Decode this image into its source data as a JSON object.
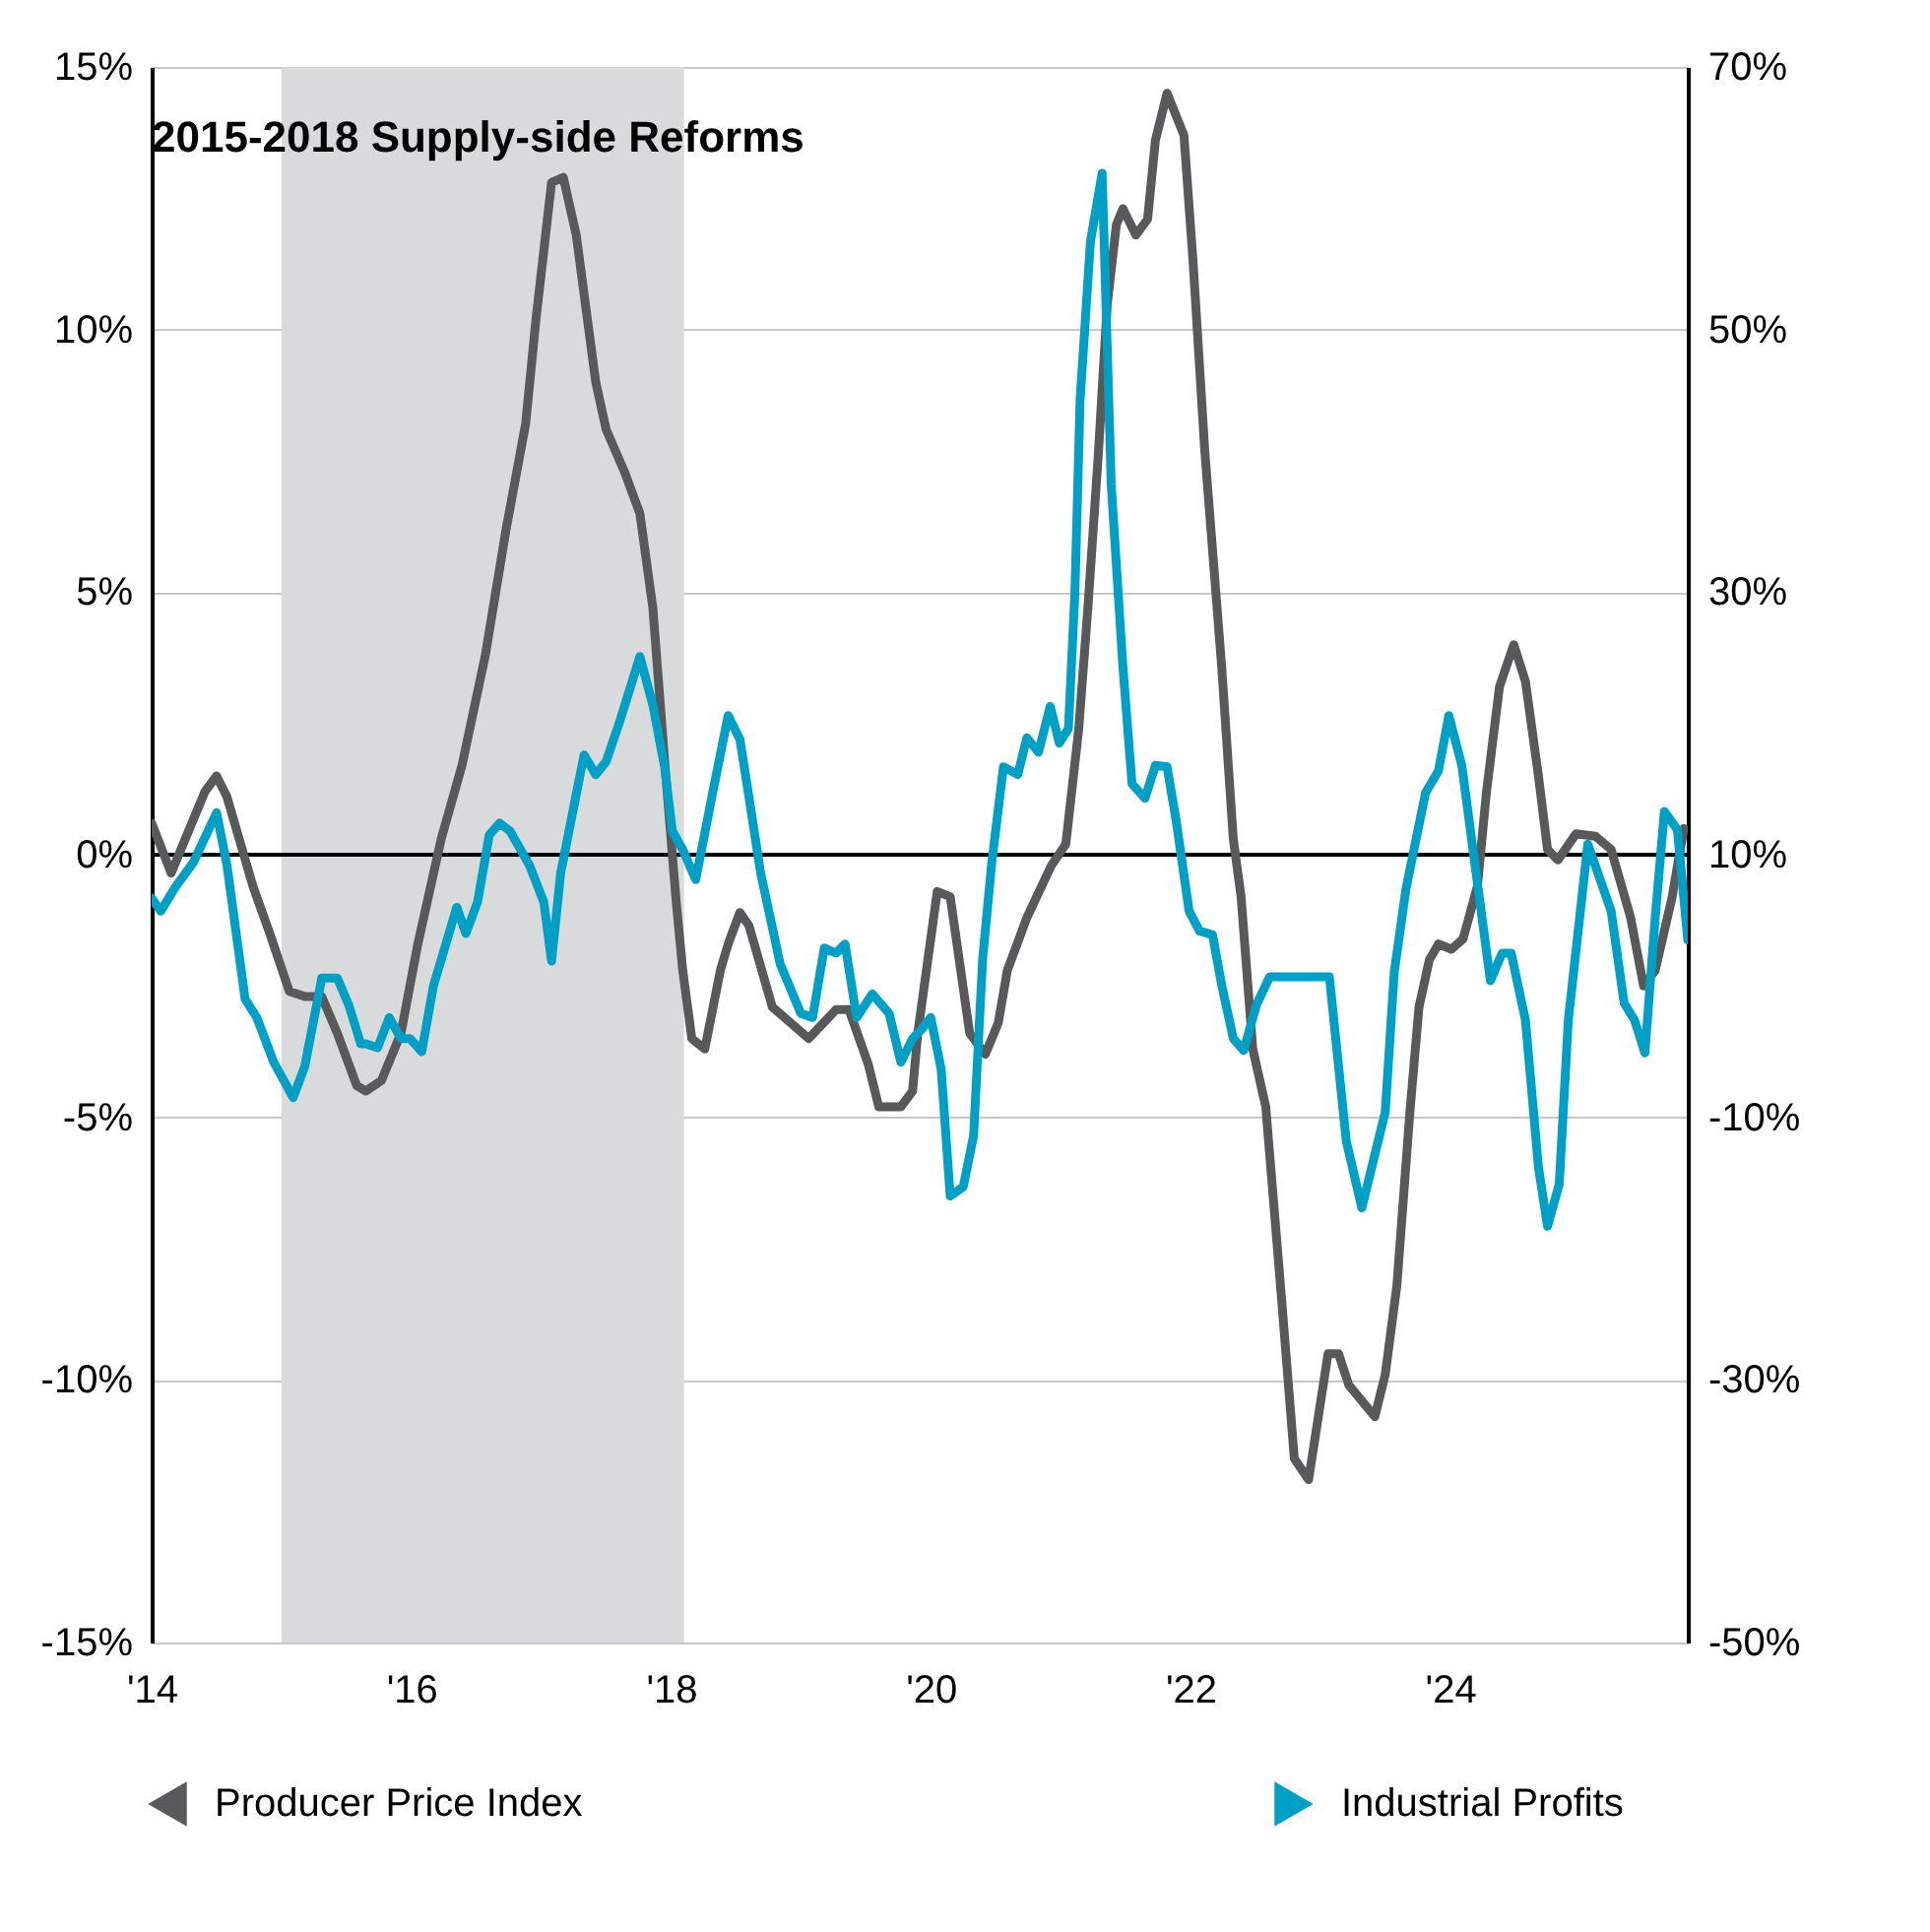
{
  "chart_data": {
    "type": "line",
    "xlim": [
      2014,
      2025.83
    ],
    "xticks": [
      {
        "value": 2014,
        "label": "'14"
      },
      {
        "value": 2016,
        "label": "'16"
      },
      {
        "value": 2018,
        "label": "'18"
      },
      {
        "value": 2020,
        "label": "'20"
      },
      {
        "value": 2022,
        "label": "'22"
      },
      {
        "value": 2024,
        "label": "'24"
      }
    ],
    "ylim": [
      -15,
      15
    ],
    "yticks": [
      {
        "value": -15,
        "label": "-15%"
      },
      {
        "value": -10,
        "label": "-10%"
      },
      {
        "value": -5,
        "label": "-5%"
      },
      {
        "value": 0,
        "label": "0%"
      },
      {
        "value": 5,
        "label": "5%"
      },
      {
        "value": 10,
        "label": "10%"
      },
      {
        "value": 15,
        "label": "15%"
      }
    ],
    "y2lim": [
      -50,
      70
    ],
    "y2ticks": [
      {
        "value": -50,
        "label": "-50%"
      },
      {
        "value": -30,
        "label": "-30%"
      },
      {
        "value": -10,
        "label": "-10%"
      },
      {
        "value": 10,
        "label": "10%"
      },
      {
        "value": 30,
        "label": "30%"
      },
      {
        "value": 50,
        "label": "50%"
      },
      {
        "value": 70,
        "label": "70%"
      }
    ],
    "grid": "y",
    "legend": "bottom",
    "line_style": "solid",
    "marker": "none",
    "bands": [
      {
        "axis": "x",
        "from": 2015,
        "to": 2018.1,
        "label": "2015-2018 Supply-side Reforms",
        "color": "#d9dadc"
      }
    ],
    "ref_lines": [
      {
        "axis": "y",
        "value": 0,
        "color": "#000000"
      }
    ],
    "series": [
      {
        "name": "Producer Price Index",
        "color": "#58595b",
        "axis": "y",
        "x": [
          2014.0,
          2014.15,
          2014.41,
          2014.5,
          2014.58,
          2014.78,
          2014.91,
          2015.06,
          2015.18,
          2015.31,
          2015.43,
          2015.58,
          2015.65,
          2015.77,
          2015.92,
          2016.05,
          2016.23,
          2016.39,
          2016.57,
          2016.73,
          2016.88,
          2016.96,
          2017.08,
          2017.17,
          2017.27,
          2017.42,
          2017.5,
          2017.64,
          2017.76,
          2017.86,
          2017.95,
          2018.04,
          2018.09,
          2018.16,
          2018.26,
          2018.38,
          2018.44,
          2018.53,
          2018.6,
          2018.78,
          2019.06,
          2019.27,
          2019.37,
          2019.52,
          2019.6,
          2019.77,
          2019.86,
          2019.9,
          2020.05,
          2020.15,
          2020.3,
          2020.42,
          2020.52,
          2020.59,
          2020.74,
          2020.93,
          2021.04,
          2021.14,
          2021.21,
          2021.29,
          2021.36,
          2021.43,
          2021.48,
          2021.58,
          2021.67,
          2021.73,
          2021.82,
          2021.95,
          2022.02,
          2022.11,
          2022.24,
          2022.33,
          2022.39,
          2022.48,
          2022.58,
          2022.7,
          2022.8,
          2022.91,
          2023.06,
          2023.14,
          2023.22,
          2023.42,
          2023.5,
          2023.59,
          2023.69,
          2023.76,
          2023.84,
          2023.91,
          2024.01,
          2024.1,
          2024.21,
          2024.28,
          2024.38,
          2024.49,
          2024.58,
          2024.68,
          2024.75,
          2024.83,
          2024.97,
          2025.12,
          2025.24,
          2025.39,
          2025.49,
          2025.58,
          2025.71,
          2025.8
        ],
        "values": [
          0.6,
          -0.35,
          1.2,
          1.5,
          1.1,
          -0.6,
          -1.5,
          -2.6,
          -2.7,
          -2.7,
          -3.4,
          -4.4,
          -4.5,
          -4.3,
          -3.4,
          -1.7,
          0.3,
          1.7,
          3.8,
          6.2,
          8.2,
          10.2,
          12.8,
          12.9,
          11.8,
          9.0,
          8.1,
          7.3,
          6.5,
          4.7,
          1.8,
          -0.9,
          -2.2,
          -3.5,
          -3.7,
          -2.2,
          -1.7,
          -1.1,
          -1.35,
          -2.9,
          -3.5,
          -2.95,
          -2.95,
          -4.0,
          -4.8,
          -4.8,
          -4.5,
          -3.4,
          -0.7,
          -0.8,
          -3.4,
          -3.8,
          -3.2,
          -2.2,
          -1.2,
          -0.2,
          0.2,
          2.4,
          4.7,
          7.6,
          10.5,
          12.0,
          12.3,
          11.8,
          12.1,
          13.6,
          14.5,
          13.7,
          11.3,
          7.7,
          3.6,
          0.3,
          -0.8,
          -3.7,
          -4.8,
          -8.4,
          -11.5,
          -11.9,
          -9.5,
          -9.5,
          -10.1,
          -10.7,
          -9.9,
          -8.2,
          -4.9,
          -2.9,
          -2.0,
          -1.7,
          -1.8,
          -1.6,
          -0.6,
          1.2,
          3.2,
          4.0,
          3.3,
          1.5,
          0.1,
          -0.1,
          0.4,
          0.35,
          0.1,
          -1.2,
          -2.5,
          -2.2,
          -0.8,
          0.5
        ]
      },
      {
        "name": "Industrial Profits",
        "color": "#00a0c6",
        "axis": "y2",
        "x": [
          2014.0,
          2014.07,
          2014.18,
          2014.32,
          2014.5,
          2014.58,
          2014.72,
          2014.81,
          2014.94,
          2015.09,
          2015.18,
          2015.31,
          2015.43,
          2015.52,
          2015.61,
          2015.65,
          2015.74,
          2015.83,
          2015.92,
          2015.99,
          2016.08,
          2016.17,
          2016.35,
          2016.42,
          2016.51,
          2016.6,
          2016.68,
          2016.76,
          2016.91,
          2017.02,
          2017.08,
          2017.15,
          2017.33,
          2017.42,
          2017.5,
          2017.61,
          2017.76,
          2017.86,
          2017.95,
          2018.01,
          2018.09,
          2018.19,
          2018.32,
          2018.44,
          2018.53,
          2018.6,
          2018.69,
          2018.84,
          2019.0,
          2019.09,
          2019.18,
          2019.27,
          2019.34,
          2019.43,
          2019.55,
          2019.68,
          2019.77,
          2019.86,
          2019.93,
          2020.0,
          2020.08,
          2020.15,
          2020.25,
          2020.33,
          2020.4,
          2020.47,
          2020.56,
          2020.67,
          2020.74,
          2020.83,
          2020.92,
          2020.99,
          2021.06,
          2021.11,
          2021.15,
          2021.23,
          2021.32,
          2021.39,
          2021.48,
          2021.55,
          2021.65,
          2021.73,
          2021.82,
          2021.89,
          2021.99,
          2022.07,
          2022.17,
          2022.24,
          2022.33,
          2022.41,
          2022.51,
          2022.61,
          2023.07,
          2023.2,
          2023.32,
          2023.5,
          2023.57,
          2023.66,
          2023.81,
          2023.91,
          2023.99,
          2024.09,
          2024.31,
          2024.4,
          2024.47,
          2024.58,
          2024.68,
          2024.75,
          2024.84,
          2024.91,
          2025.06,
          2025.24,
          2025.34,
          2025.42,
          2025.5,
          2025.58,
          2025.65,
          2025.75,
          2025.83
        ],
        "values": [
          6.7,
          5.7,
          7.5,
          9.4,
          13.2,
          9.2,
          -1.0,
          -2.4,
          -5.8,
          -8.5,
          -6.1,
          0.6,
          0.6,
          -1.5,
          -4.4,
          -4.4,
          -4.7,
          -2.4,
          -4.0,
          -4.0,
          -5.0,
          0.0,
          6.0,
          4.0,
          6.4,
          11.5,
          12.4,
          11.8,
          9.2,
          6.4,
          1.9,
          8.6,
          17.6,
          16.1,
          17.1,
          20.3,
          25.1,
          21.4,
          16.7,
          11.8,
          10.4,
          8.1,
          14.7,
          20.6,
          18.8,
          14.4,
          8.6,
          1.7,
          -2.1,
          -2.4,
          2.9,
          2.5,
          3.2,
          -2.4,
          -0.6,
          -2.1,
          -5.8,
          -4.0,
          -3.3,
          -2.4,
          -6.3,
          -16.0,
          -15.3,
          -11.4,
          2.1,
          9.4,
          16.7,
          16.1,
          18.9,
          17.8,
          21.3,
          18.5,
          19.6,
          29.9,
          44.6,
          56.7,
          61.9,
          38.2,
          24.3,
          15.4,
          14.3,
          16.8,
          16.7,
          12.6,
          5.7,
          4.2,
          3.9,
          0.1,
          -4.0,
          -4.9,
          -1.4,
          0.7,
          0.7,
          -11.8,
          -16.9,
          -9.6,
          1.1,
          7.4,
          14.7,
          16.4,
          20.6,
          16.8,
          0.4,
          2.5,
          2.5,
          -2.6,
          -13.8,
          -18.3,
          -15.1,
          -2.6,
          10.8,
          5.7,
          -1.3,
          -2.6,
          -5.1,
          5.3,
          13.3,
          11.9,
          3.5
        ]
      }
    ]
  }
}
